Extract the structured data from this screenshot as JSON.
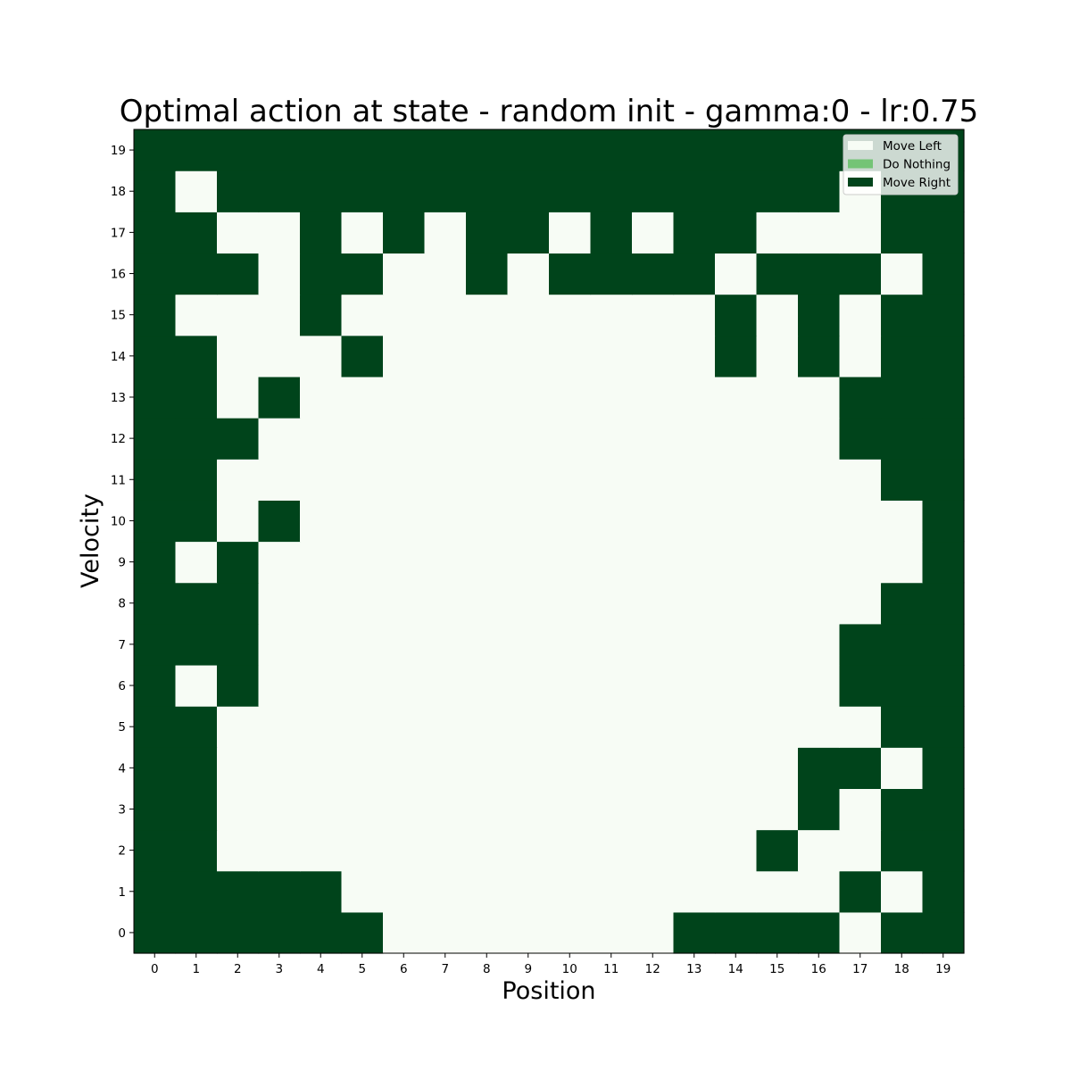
{
  "chart_data": {
    "type": "heatmap",
    "title": "Optimal action at state - random init - gamma:0 - lr:0.75",
    "xlabel": "Position",
    "ylabel": "Velocity",
    "x_ticks": [
      "0",
      "1",
      "2",
      "3",
      "4",
      "5",
      "6",
      "7",
      "8",
      "9",
      "10",
      "11",
      "12",
      "13",
      "14",
      "15",
      "16",
      "17",
      "18",
      "19"
    ],
    "y_ticks": [
      "0",
      "1",
      "2",
      "3",
      "4",
      "5",
      "6",
      "7",
      "8",
      "9",
      "10",
      "11",
      "12",
      "13",
      "14",
      "15",
      "16",
      "17",
      "18",
      "19"
    ],
    "legend": {
      "placement": "top-right",
      "entries": [
        {
          "label": "Move Left",
          "value": 0,
          "color": "#f7fcf5"
        },
        {
          "label": "Do Nothing",
          "value": 1,
          "color": "#74c476"
        },
        {
          "label": "Move Right",
          "value": 2,
          "color": "#00441b"
        }
      ]
    },
    "rows_by_velocity": [
      [
        2,
        2,
        2,
        2,
        2,
        2,
        0,
        0,
        0,
        0,
        0,
        0,
        0,
        2,
        2,
        2,
        2,
        0,
        2,
        2
      ],
      [
        2,
        2,
        2,
        2,
        2,
        0,
        0,
        0,
        0,
        0,
        0,
        0,
        0,
        0,
        0,
        0,
        0,
        2,
        0,
        2
      ],
      [
        2,
        2,
        0,
        0,
        0,
        0,
        0,
        0,
        0,
        0,
        0,
        0,
        0,
        0,
        0,
        2,
        0,
        0,
        2,
        2
      ],
      [
        2,
        2,
        0,
        0,
        0,
        0,
        0,
        0,
        0,
        0,
        0,
        0,
        0,
        0,
        0,
        0,
        2,
        0,
        2,
        2
      ],
      [
        2,
        2,
        0,
        0,
        0,
        0,
        0,
        0,
        0,
        0,
        0,
        0,
        0,
        0,
        0,
        0,
        2,
        2,
        0,
        2
      ],
      [
        2,
        2,
        0,
        0,
        0,
        0,
        0,
        0,
        0,
        0,
        0,
        0,
        0,
        0,
        0,
        0,
        0,
        0,
        2,
        2
      ],
      [
        2,
        0,
        2,
        0,
        0,
        0,
        0,
        0,
        0,
        0,
        0,
        0,
        0,
        0,
        0,
        0,
        0,
        2,
        2,
        2
      ],
      [
        2,
        2,
        2,
        0,
        0,
        0,
        0,
        0,
        0,
        0,
        0,
        0,
        0,
        0,
        0,
        0,
        0,
        2,
        2,
        2
      ],
      [
        2,
        2,
        2,
        0,
        0,
        0,
        0,
        0,
        0,
        0,
        0,
        0,
        0,
        0,
        0,
        0,
        0,
        0,
        2,
        2
      ],
      [
        2,
        0,
        2,
        0,
        0,
        0,
        0,
        0,
        0,
        0,
        0,
        0,
        0,
        0,
        0,
        0,
        0,
        0,
        0,
        2
      ],
      [
        2,
        2,
        0,
        2,
        0,
        0,
        0,
        0,
        0,
        0,
        0,
        0,
        0,
        0,
        0,
        0,
        0,
        0,
        0,
        2
      ],
      [
        2,
        2,
        0,
        0,
        0,
        0,
        0,
        0,
        0,
        0,
        0,
        0,
        0,
        0,
        0,
        0,
        0,
        0,
        2,
        2
      ],
      [
        2,
        2,
        2,
        0,
        0,
        0,
        0,
        0,
        0,
        0,
        0,
        0,
        0,
        0,
        0,
        0,
        0,
        2,
        2,
        2
      ],
      [
        2,
        2,
        0,
        2,
        0,
        0,
        0,
        0,
        0,
        0,
        0,
        0,
        0,
        0,
        0,
        0,
        0,
        2,
        2,
        2
      ],
      [
        2,
        2,
        0,
        0,
        0,
        2,
        0,
        0,
        0,
        0,
        0,
        0,
        0,
        0,
        2,
        0,
        2,
        0,
        2,
        2
      ],
      [
        2,
        0,
        0,
        0,
        2,
        0,
        0,
        0,
        0,
        0,
        0,
        0,
        0,
        0,
        2,
        0,
        2,
        0,
        2,
        2
      ],
      [
        2,
        2,
        2,
        0,
        2,
        2,
        0,
        0,
        2,
        0,
        2,
        2,
        2,
        2,
        0,
        2,
        2,
        2,
        0,
        2
      ],
      [
        2,
        2,
        0,
        0,
        2,
        0,
        2,
        0,
        2,
        2,
        0,
        2,
        0,
        2,
        2,
        0,
        0,
        0,
        2,
        2
      ],
      [
        2,
        0,
        2,
        2,
        2,
        2,
        2,
        2,
        2,
        2,
        2,
        2,
        2,
        2,
        2,
        2,
        2,
        0,
        2,
        2
      ],
      [
        2,
        2,
        2,
        2,
        2,
        2,
        2,
        2,
        2,
        2,
        2,
        2,
        2,
        2,
        2,
        2,
        2,
        2,
        2,
        2
      ]
    ]
  }
}
